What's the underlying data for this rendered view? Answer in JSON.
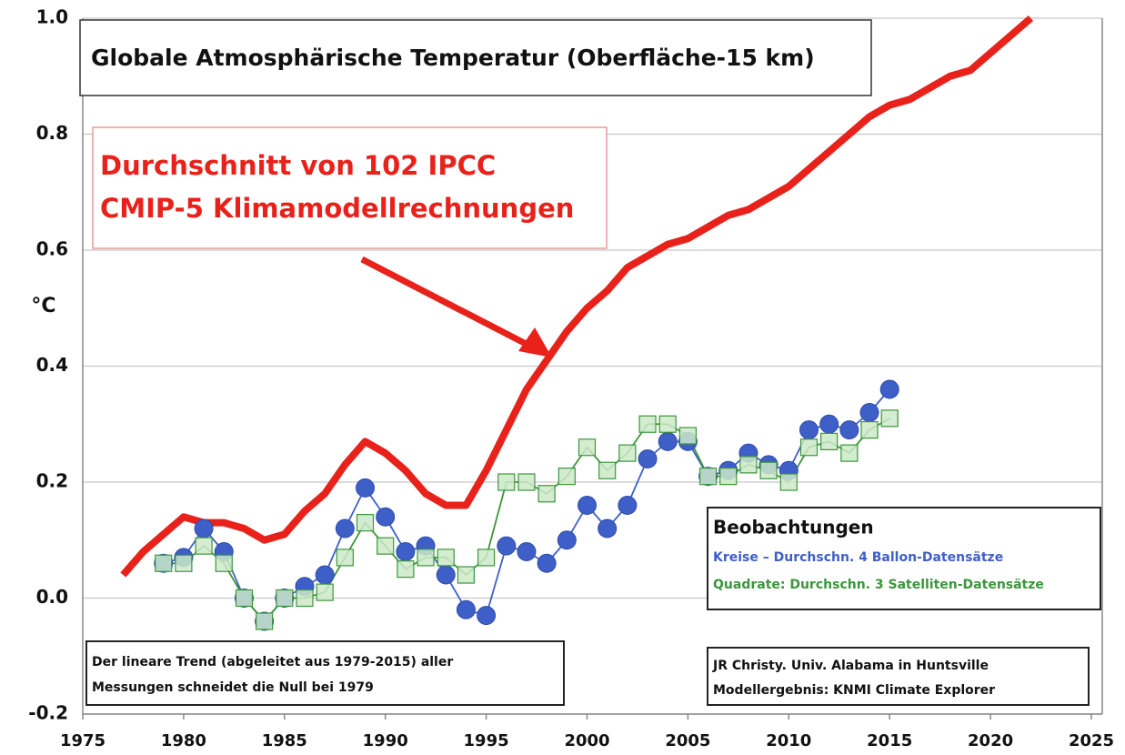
{
  "chart_data": {
    "type": "line",
    "title": "Globale Atmosphärische Temperatur (Oberfläche-15 km)",
    "ylabel": "°C",
    "model_label": [
      "Durchschnitt von 102 IPCC",
      "CMIP-5 Klimamodellrechnungen"
    ],
    "legend_title": "Beobachtungen",
    "note": [
      "Der lineare Trend (abgeleitet aus 1979-2015) aller",
      "Messungen schneidet die Null bei 1979"
    ],
    "credit": [
      "JR Christy. Univ. Alabama in Huntsville",
      "Modellergebnis: KNMI Climate Explorer"
    ],
    "xlim": [
      1975,
      2025
    ],
    "xticks": [
      1975,
      1980,
      1985,
      1990,
      1995,
      2000,
      2005,
      2010,
      2015,
      2020,
      2025
    ],
    "ylim": [
      -0.2,
      1.0
    ],
    "yticks": [
      -0.2,
      {
        "value": 0.0,
        "label": "0.0"
      },
      0.2,
      0.4,
      0.6,
      0.8,
      {
        "value": 1.0,
        "label": "1.0"
      }
    ],
    "grid": true,
    "series": [
      {
        "color": "#e8221b",
        "marker": "none",
        "x": [
          1977,
          1978,
          1979,
          1980,
          1981,
          1982,
          1983,
          1984,
          1985,
          1986,
          1987,
          1988,
          1989,
          1990,
          1991,
          1992,
          1993,
          1994,
          1995,
          1996,
          1997,
          1998,
          1999,
          2000,
          2001,
          2002,
          2003,
          2004,
          2005,
          2006,
          2007,
          2008,
          2009,
          2010,
          2011,
          2012,
          2013,
          2014,
          2015,
          2016,
          2017,
          2018,
          2019,
          2020,
          2021,
          2022
        ],
        "values": [
          0.04,
          0.08,
          0.11,
          0.14,
          0.13,
          0.13,
          0.12,
          0.1,
          0.11,
          0.15,
          0.18,
          0.23,
          0.27,
          0.25,
          0.22,
          0.18,
          0.16,
          0.16,
          0.22,
          0.29,
          0.36,
          0.41,
          0.46,
          0.5,
          0.53,
          0.57,
          0.59,
          0.61,
          0.62,
          0.64,
          0.66,
          0.67,
          0.69,
          0.71,
          0.74,
          0.77,
          0.8,
          0.83,
          0.85,
          0.86,
          0.88,
          0.9,
          0.91,
          0.94,
          0.97,
          1.0
        ]
      },
      {
        "name": "Kreise – Durchschn. 4 Ballon-Datensätze",
        "color": "#3f5fc8",
        "marker": "circle",
        "x": [
          1979,
          1980,
          1981,
          1982,
          1983,
          1984,
          1985,
          1986,
          1987,
          1988,
          1989,
          1990,
          1991,
          1992,
          1993,
          1994,
          1995,
          1996,
          1997,
          1998,
          1999,
          2000,
          2001,
          2002,
          2003,
          2004,
          2005,
          2006,
          2007,
          2008,
          2009,
          2010,
          2011,
          2012,
          2013,
          2014,
          2015
        ],
        "values": [
          0.06,
          0.07,
          0.12,
          0.08,
          0.0,
          -0.04,
          0.0,
          0.02,
          0.04,
          0.12,
          0.19,
          0.14,
          0.08,
          0.09,
          0.04,
          -0.02,
          -0.03,
          0.09,
          0.08,
          0.06,
          0.1,
          0.16,
          0.12,
          0.16,
          0.24,
          0.27,
          0.27,
          0.21,
          0.22,
          0.25,
          0.23,
          0.22,
          0.29,
          0.3,
          0.29,
          0.32,
          0.36
        ]
      },
      {
        "name": "Quadrate: Durchschn. 3 Satelliten-Datensätze",
        "color": "#3c963c",
        "marker": "square",
        "x": [
          1979,
          1980,
          1981,
          1982,
          1983,
          1984,
          1985,
          1986,
          1987,
          1988,
          1989,
          1990,
          1991,
          1992,
          1993,
          1994,
          1995,
          1996,
          1997,
          1998,
          1999,
          2000,
          2001,
          2002,
          2003,
          2004,
          2005,
          2006,
          2007,
          2008,
          2009,
          2010,
          2011,
          2012,
          2013,
          2014,
          2015
        ],
        "values": [
          0.06,
          0.06,
          0.09,
          0.06,
          0.0,
          -0.04,
          0.0,
          0.0,
          0.01,
          0.07,
          0.13,
          0.09,
          0.05,
          0.07,
          0.07,
          0.04,
          0.07,
          0.2,
          0.2,
          0.18,
          0.21,
          0.26,
          0.22,
          0.25,
          0.3,
          0.3,
          0.28,
          0.21,
          0.21,
          0.23,
          0.22,
          0.2,
          0.26,
          0.27,
          0.25,
          0.29,
          0.31
        ]
      }
    ]
  }
}
